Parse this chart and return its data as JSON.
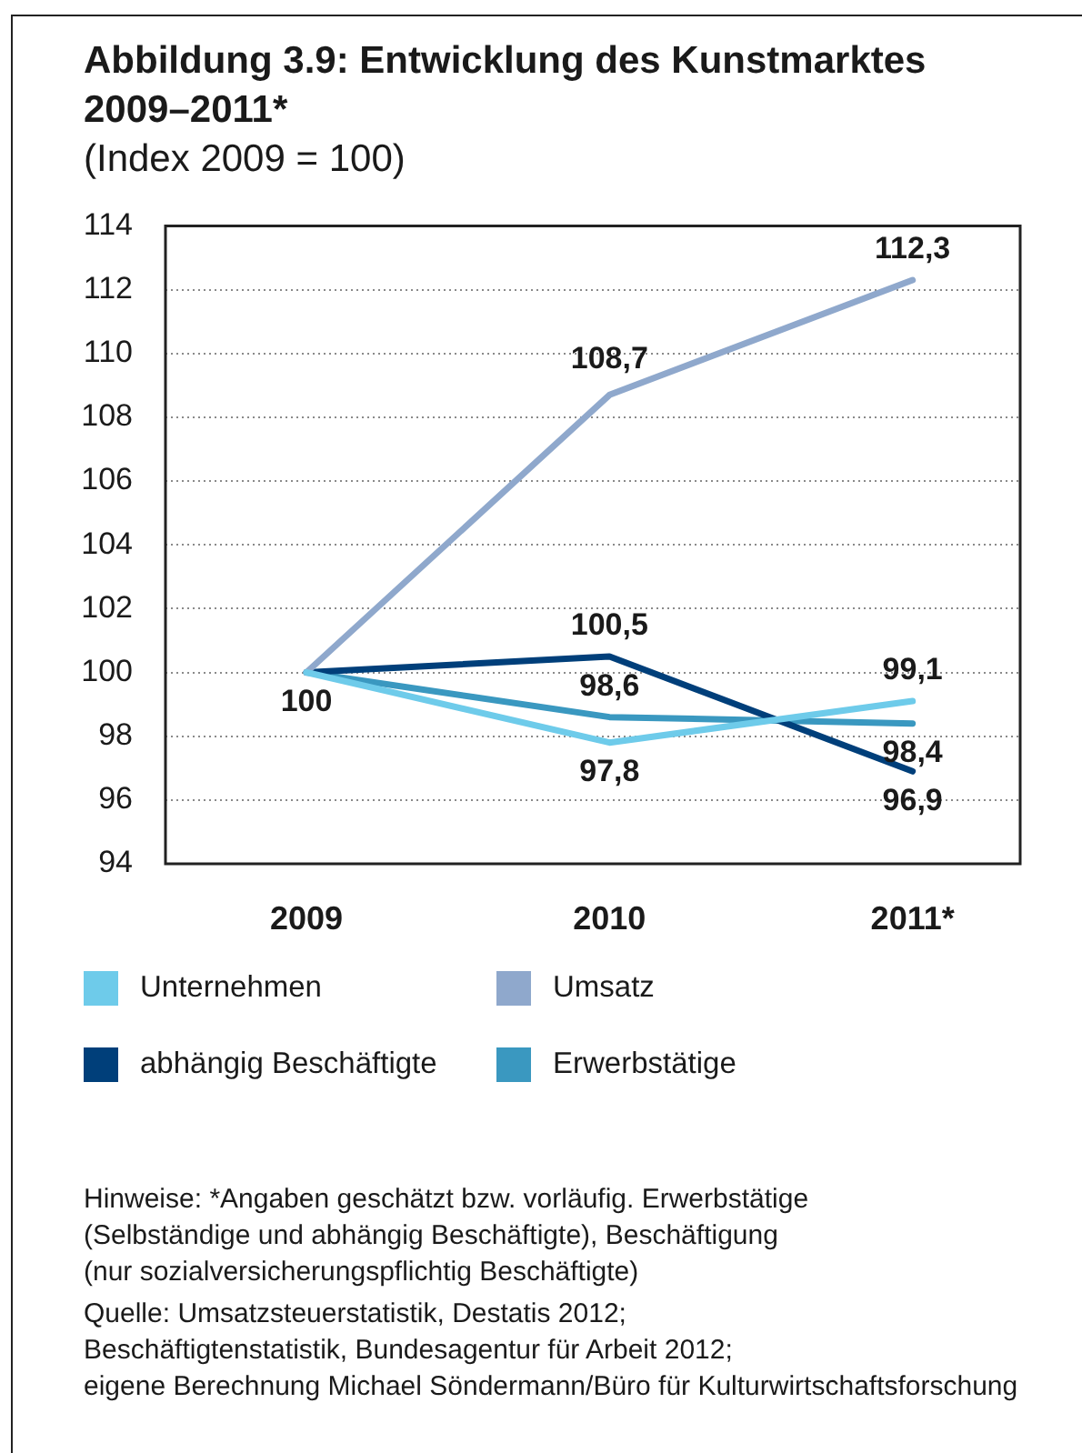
{
  "chart_data": {
    "type": "line",
    "title": "Abbildung 3.9: Entwicklung des Kunstmarktes 2009–2011*",
    "subtitle": "(Index 2009 = 100)",
    "categories": [
      "2009",
      "2010",
      "2011*"
    ],
    "series": [
      {
        "name": "Unternehmen",
        "color": "#6ecbea",
        "values": [
          100,
          97.8,
          99.1
        ],
        "value_labels": [
          "100",
          "97,8",
          "99,1"
        ]
      },
      {
        "name": "Umsatz",
        "color": "#8fa8cc",
        "values": [
          100,
          108.7,
          112.3
        ],
        "value_labels": [
          null,
          "108,7",
          "112,3"
        ]
      },
      {
        "name": "abhängig Beschäftigte",
        "color": "#003f7a",
        "values": [
          100,
          100.5,
          96.9
        ],
        "value_labels": [
          null,
          "100,5",
          "96,9"
        ]
      },
      {
        "name": "Erwerbstätige",
        "color": "#3a98c0",
        "values": [
          100,
          98.6,
          98.4
        ],
        "value_labels": [
          null,
          "98,6",
          "98,4"
        ]
      }
    ],
    "ylim": [
      94,
      114
    ],
    "yticks": [
      94,
      96,
      98,
      100,
      102,
      104,
      106,
      108,
      110,
      112,
      114
    ],
    "grid": "y",
    "legend": "bottom",
    "annotations": [
      "Hinweise: *Angaben geschätzt bzw. vorläufig. Erwerbstätige\n(Selbständige und abhängig Beschäftigte), Beschäftigung\n(nur sozialversicherungspflichtig Beschäftigte)",
      "Quelle: Umsatzsteuerstatistik, Destatis 2012;\nBeschäftigtenstatistik, Bundesagentur für Arbeit 2012;\neigene Berechnung Michael Söndermann/Büro für Kulturwirtschaftsforschung"
    ]
  }
}
